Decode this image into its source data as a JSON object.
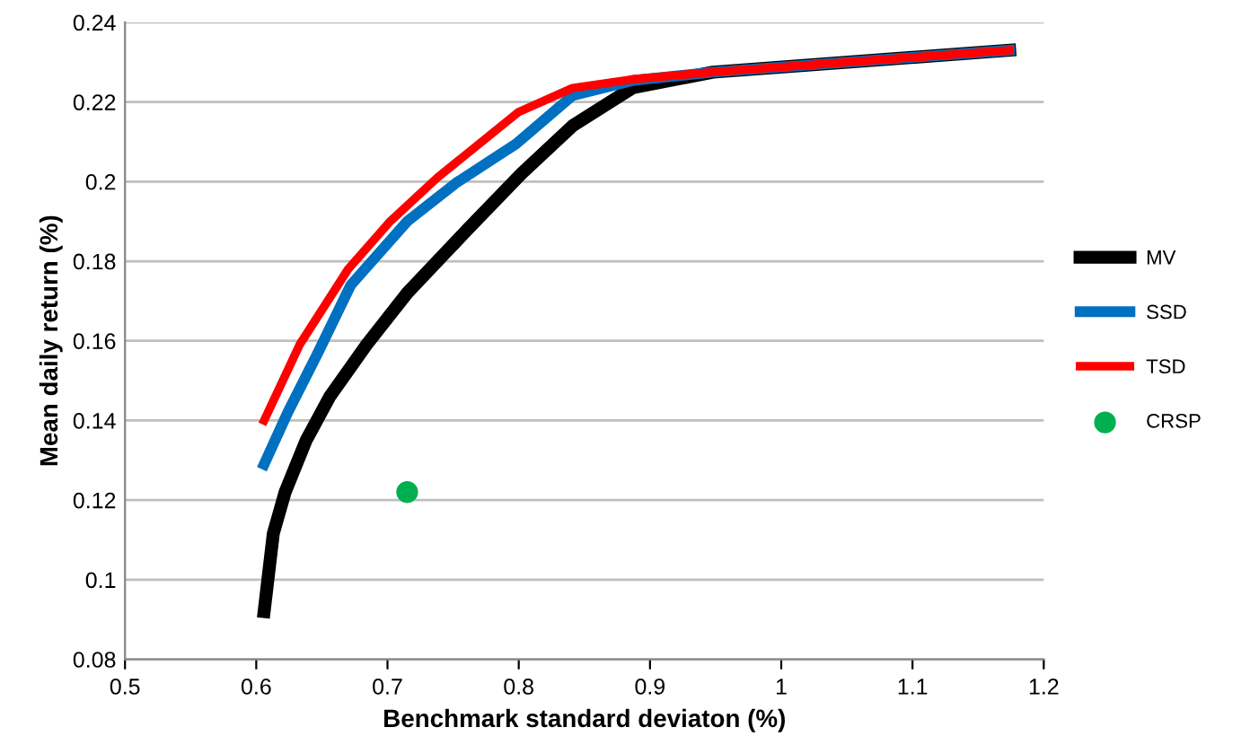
{
  "chart_data": {
    "type": "line",
    "xlabel": "Benchmark standard deviaton (%)",
    "ylabel": "Mean daily return (%)",
    "xlim": [
      0.5,
      1.2
    ],
    "xticks": [
      0.5,
      0.6,
      0.7,
      0.8,
      0.9,
      1,
      1.1,
      1.2
    ],
    "ylim": [
      0.08,
      0.24
    ],
    "yticks": [
      0.08,
      0.1,
      0.12,
      0.14,
      0.16,
      0.18,
      0.2,
      0.22,
      0.24
    ],
    "grid": "y",
    "legend": "right",
    "marker": "none",
    "line_style": "solid",
    "series": [
      {
        "name": "MV",
        "color": "#000000",
        "x": [
          0.606,
          0.613,
          0.622,
          0.638,
          0.656,
          0.684,
          0.715,
          0.761,
          0.802,
          0.841,
          0.887,
          0.948,
          1.174
        ],
        "values": [
          0.092,
          0.1116,
          0.122,
          0.135,
          0.146,
          0.159,
          0.172,
          0.188,
          0.202,
          0.214,
          0.2236,
          0.2275,
          0.233
        ]
      },
      {
        "name": "SSD",
        "color": "#0070c0",
        "x": [
          0.606,
          0.624,
          0.647,
          0.672,
          0.715,
          0.752,
          0.798,
          0.841,
          0.887,
          0.948,
          1.174
        ],
        "values": [
          0.129,
          0.142,
          0.157,
          0.174,
          0.19,
          0.1996,
          0.2095,
          0.2216,
          0.2254,
          0.2275,
          0.233
        ]
      },
      {
        "name": "TSD",
        "color": "#ff0000",
        "x": [
          0.606,
          0.633,
          0.67,
          0.702,
          0.738,
          0.8,
          0.841,
          0.887,
          0.948,
          1.174
        ],
        "values": [
          0.14,
          0.159,
          0.178,
          0.19,
          0.201,
          0.2175,
          0.2235,
          0.2257,
          0.2275,
          0.233
        ]
      },
      {
        "name": "CRSP",
        "type": "scatter",
        "marker": "circle",
        "color": "#00b050",
        "x": [
          0.715
        ],
        "values": [
          0.122
        ]
      }
    ]
  }
}
